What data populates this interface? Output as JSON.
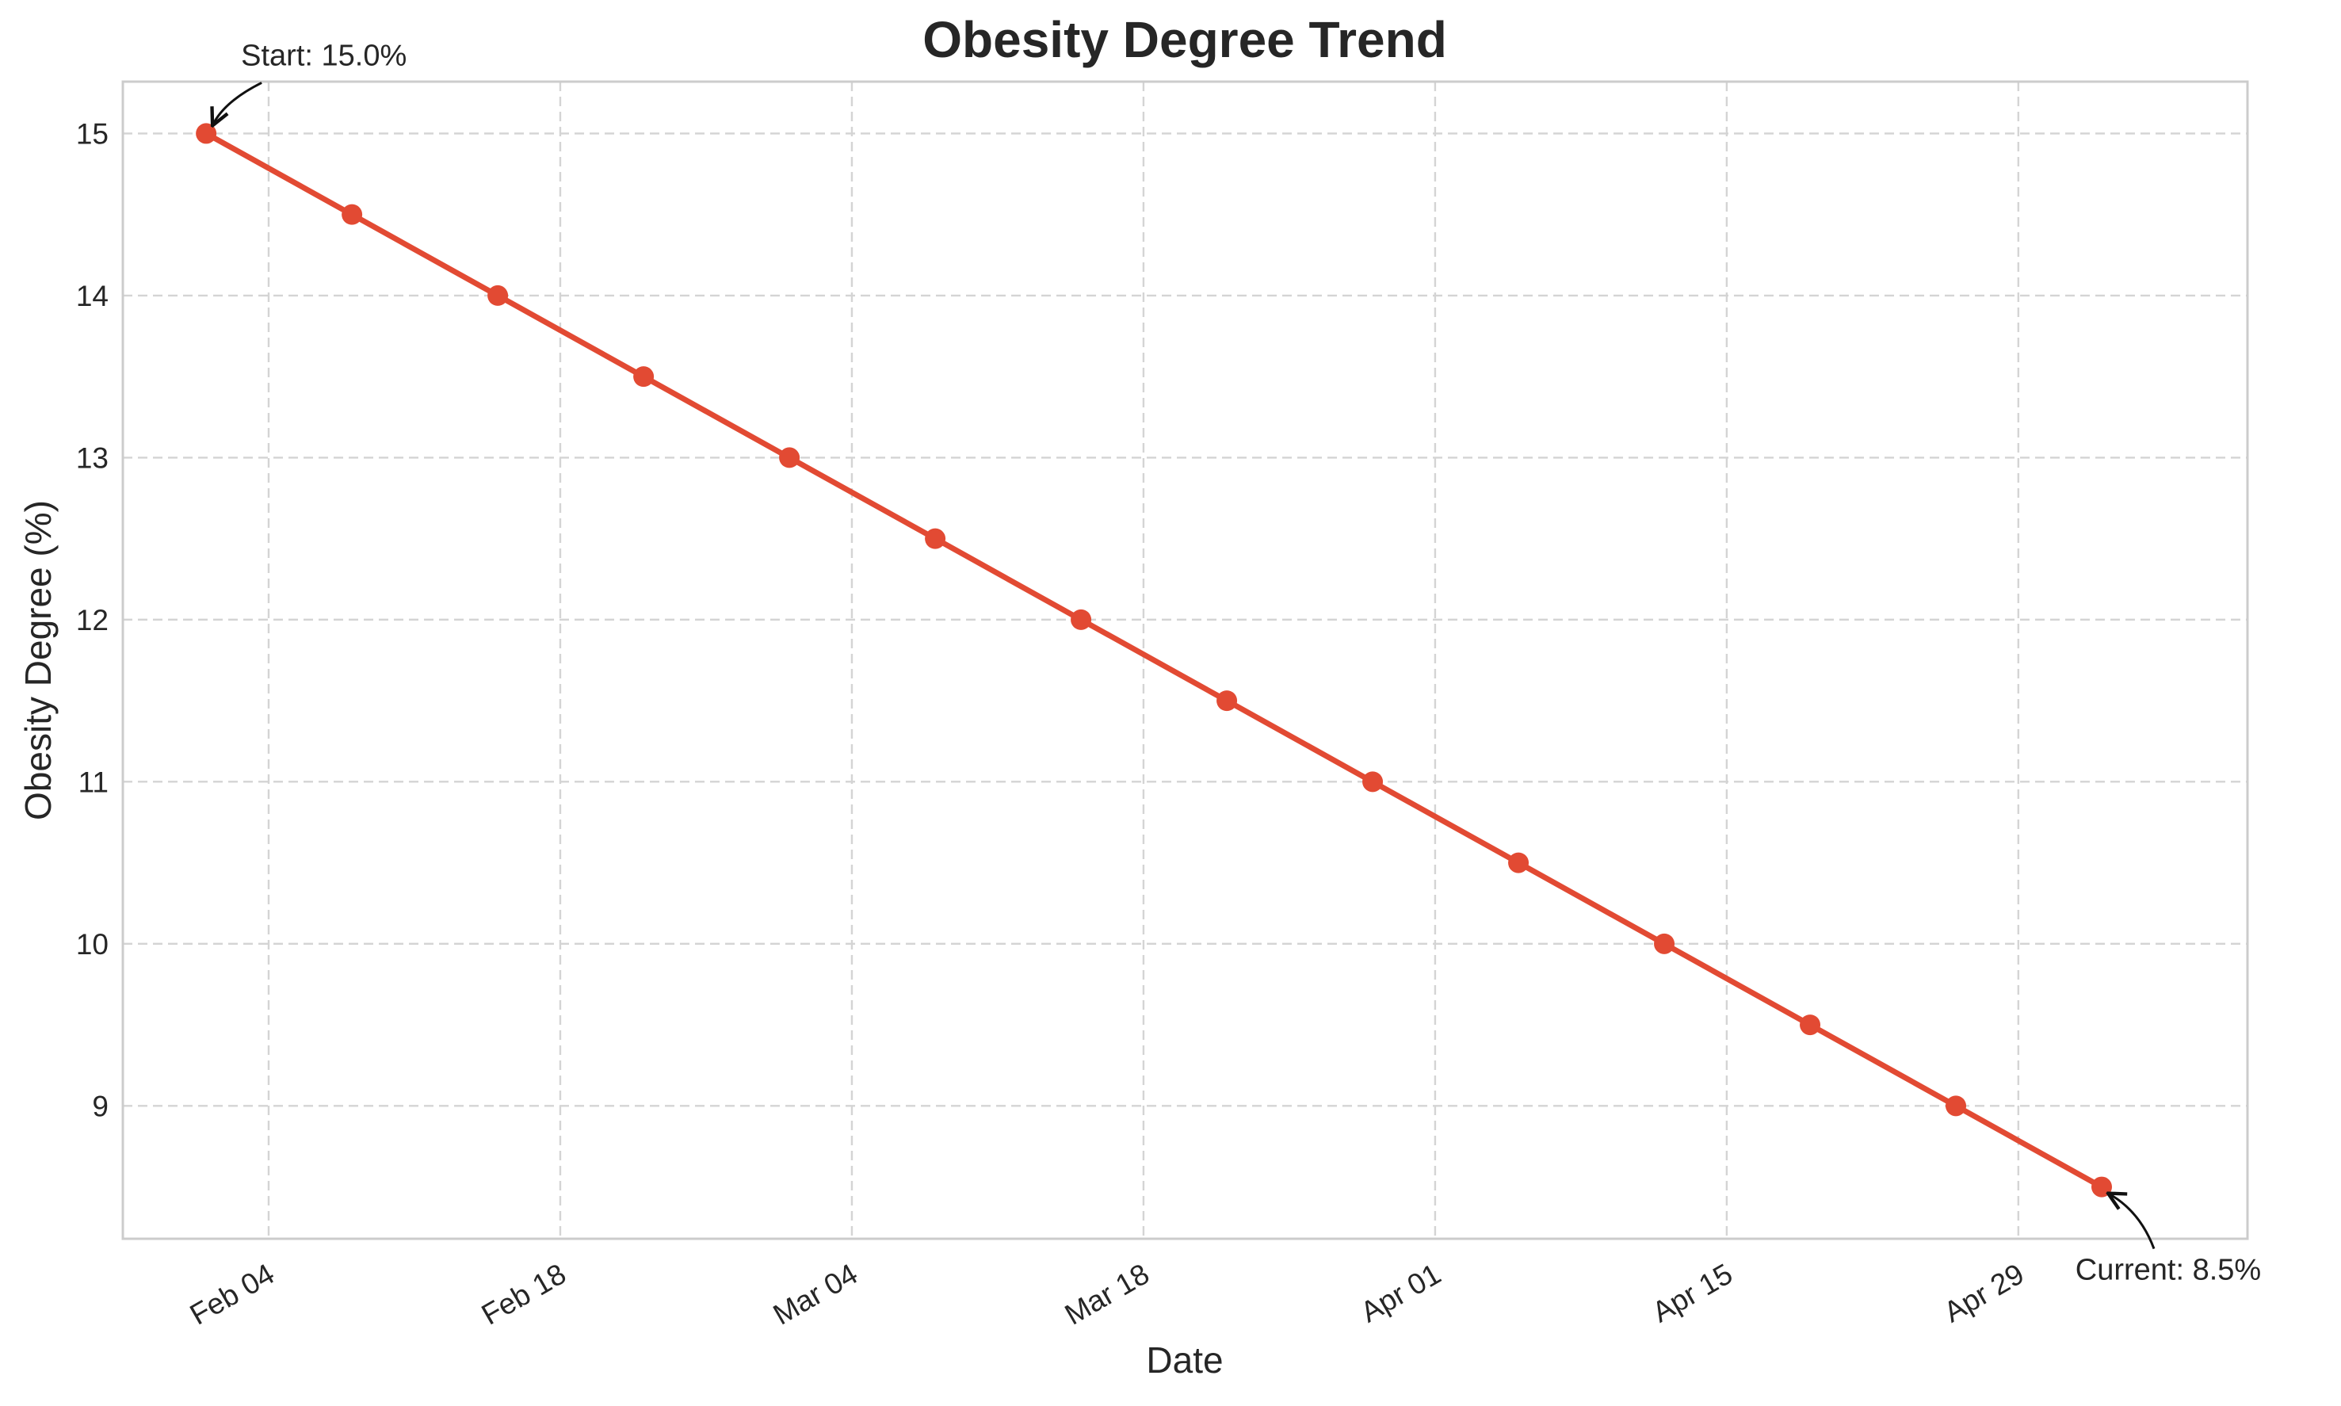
{
  "chart_data": {
    "type": "line",
    "title": "Obesity Degree Trend",
    "xlabel": "Date",
    "ylabel": "Obesity Degree (%)",
    "x_axis_type": "date",
    "xlim": [
      "2025-01-28",
      "2025-05-10"
    ],
    "ylim": [
      8.18,
      15.32
    ],
    "grid": true,
    "x_tick_dates": [
      "2025-02-04",
      "2025-02-18",
      "2025-03-04",
      "2025-03-18",
      "2025-04-01",
      "2025-04-15",
      "2025-04-29"
    ],
    "x_tick_labels": [
      "Feb 04",
      "Feb 18",
      "Mar 04",
      "Mar 18",
      "Apr 01",
      "Apr 15",
      "Apr 29"
    ],
    "y_ticks": [
      9,
      10,
      11,
      12,
      13,
      14,
      15
    ],
    "y_tick_labels": [
      "9",
      "10",
      "11",
      "12",
      "13",
      "14",
      "15"
    ],
    "series": [
      {
        "color": "#e24a33",
        "marker": "circle",
        "x": [
          "2025-02-01",
          "2025-02-08",
          "2025-02-15",
          "2025-02-22",
          "2025-03-01",
          "2025-03-08",
          "2025-03-15",
          "2025-03-22",
          "2025-03-29",
          "2025-04-05",
          "2025-04-12",
          "2025-04-19",
          "2025-04-26",
          "2025-05-03"
        ],
        "values": [
          15.0,
          14.5,
          14.0,
          13.5,
          13.0,
          12.5,
          12.0,
          11.5,
          11.0,
          10.5,
          10.0,
          9.5,
          9.0,
          8.5
        ]
      }
    ],
    "annotations": [
      {
        "text": "Start: 15.0%",
        "x": "2025-02-01",
        "y": 15.0,
        "placement": "above-right"
      },
      {
        "text": "Current: 8.5%",
        "x": "2025-05-03",
        "y": 8.5,
        "placement": "below-right"
      }
    ]
  }
}
